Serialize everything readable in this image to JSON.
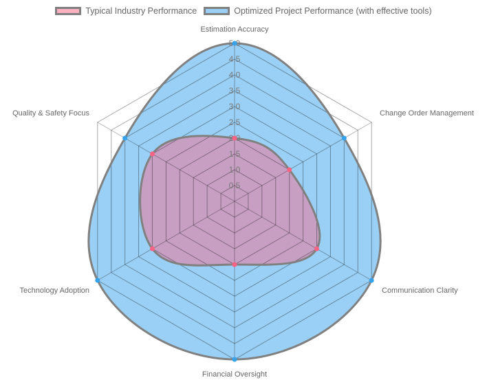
{
  "chart_data": {
    "type": "radar",
    "categories": [
      "Estimation Accuracy",
      "Change Order Management",
      "Communication Clarity",
      "Financial Oversight",
      "Technology Adoption",
      "Quality & Safety Focus"
    ],
    "series": [
      {
        "name": "Typical Industry Performance",
        "values": [
          2,
          2,
          3,
          2,
          3,
          3
        ],
        "fill": "#ff6384",
        "border": "#808080",
        "point": "#ff6384"
      },
      {
        "name": "Optimized Project Performance (with effective tools)",
        "values": [
          5,
          4,
          5,
          5,
          5,
          4
        ],
        "fill": "#36a2eb",
        "border": "#808080",
        "point": "#36a2eb"
      }
    ],
    "rlim": [
      0,
      5
    ],
    "ticks": [
      "0.5",
      "1.0",
      "1.5",
      "2.0",
      "2.5",
      "3.0",
      "3.5",
      "4.0",
      "4.5",
      "5.0"
    ],
    "legend": "top"
  }
}
